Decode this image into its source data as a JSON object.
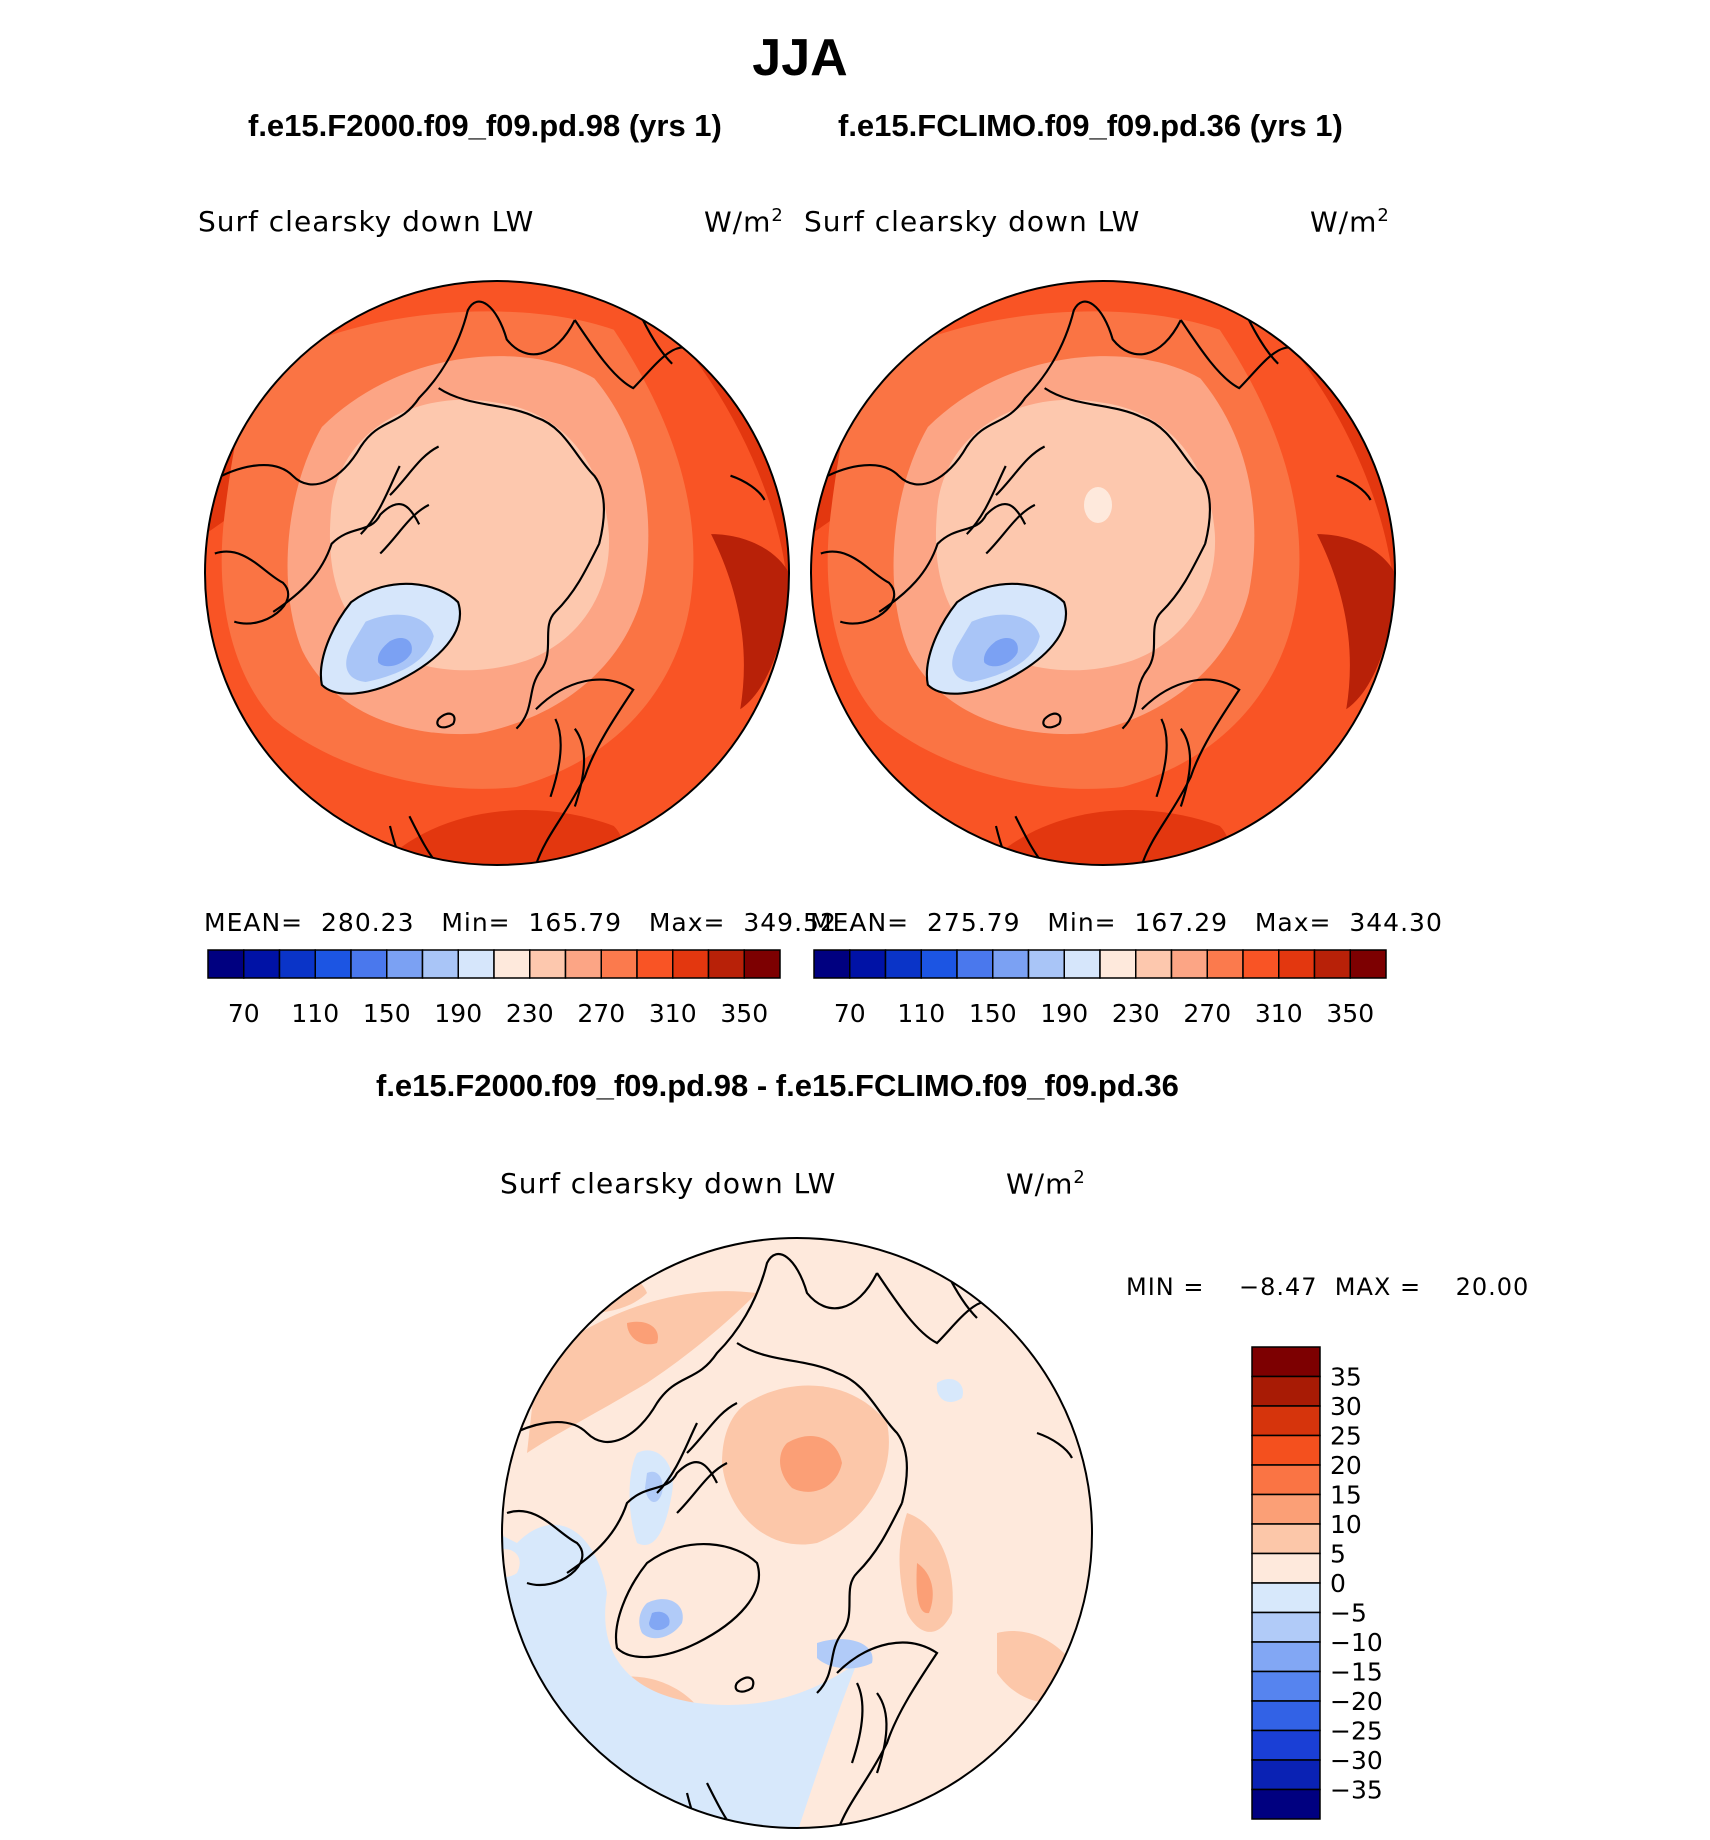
{
  "season": "JJA",
  "panels": [
    {
      "case_title": "f.e15.F2000.f09_f09.pd.98 (yrs 1)",
      "field": "Surf clearsky down LW",
      "units_base": "W/m",
      "units_exp": "2",
      "stats": "MEAN=  280.23   Min=  165.79   Max=  349.52"
    },
    {
      "case_title": "f.e15.FCLIMO.f09_f09.pd.36 (yrs 1)",
      "field": "Surf clearsky down LW",
      "units_base": "W/m",
      "units_exp": "2",
      "stats": "MEAN=  275.79   Min=  167.29   Max=  344.30"
    }
  ],
  "abs_colorbar": {
    "colors": [
      "#000080",
      "#0012a6",
      "#0a34c8",
      "#1c55e3",
      "#4a78ed",
      "#7ba1f3",
      "#a9c5f7",
      "#d6e6fb",
      "#fee9dc",
      "#fdc8ae",
      "#fca585",
      "#fb7a4d",
      "#f95425",
      "#e3370f",
      "#b82108",
      "#7d0001"
    ],
    "tick_labels": [
      "70",
      "110",
      "150",
      "190",
      "230",
      "270",
      "310",
      "350"
    ]
  },
  "diff_panel": {
    "title": "f.e15.F2000.f09_f09.pd.98 - f.e15.FCLIMO.f09_f09.pd.36",
    "field": "Surf clearsky down LW",
    "units_base": "W/m",
    "units_exp": "2",
    "minmax": "MIN =    −8.47  MAX =    20.00",
    "colorbar": {
      "colors": [
        "#000080",
        "#0a22b4",
        "#1a3fd6",
        "#3262e6",
        "#5684ef",
        "#82a7f4",
        "#b1cbf8",
        "#d7e8fb",
        "#fee9dc",
        "#fcc7a9",
        "#fb9f76",
        "#fa7444",
        "#f4501e",
        "#d6340c",
        "#a81b05",
        "#7d0001"
      ],
      "labels": [
        "35",
        "30",
        "25",
        "20",
        "15",
        "10",
        "5",
        "0",
        "−5",
        "−10",
        "−15",
        "−20",
        "−25",
        "−30",
        "−35"
      ]
    }
  }
}
